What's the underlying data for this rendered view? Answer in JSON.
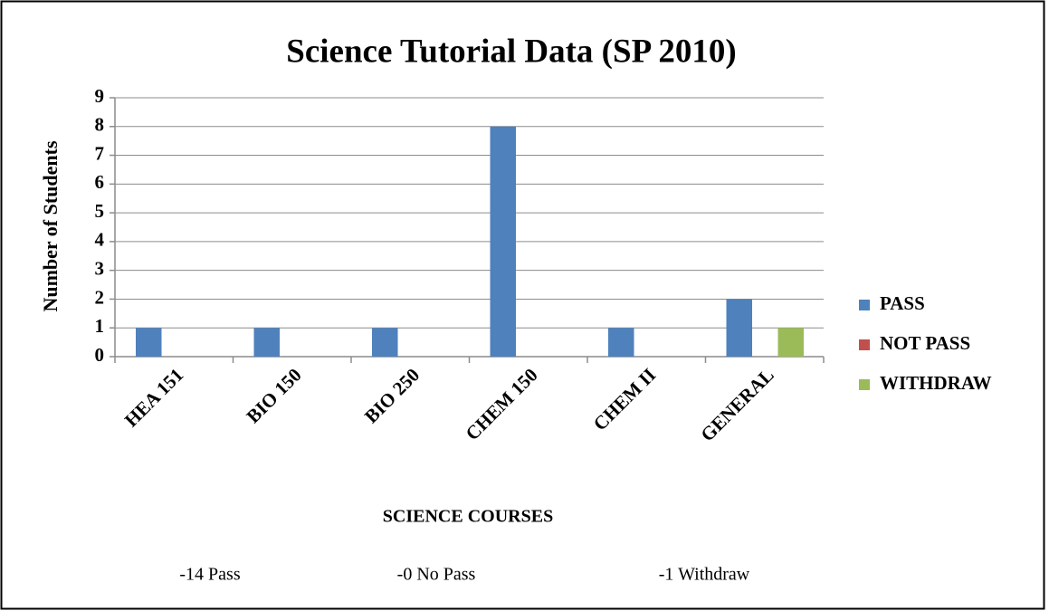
{
  "chart_data": {
    "type": "bar",
    "title": "Science Tutorial Data (SP 2010)",
    "x_label": "SCIENCE COURSES",
    "y_label": "Number of Students",
    "categories": [
      "HEA 151",
      "BIO 150",
      "BIO 250",
      "CHEM 150",
      "CHEM II",
      "GENERAL"
    ],
    "series": [
      {
        "name": "PASS",
        "color": "#4f81bd",
        "values": [
          1,
          1,
          1,
          8,
          1,
          2
        ]
      },
      {
        "name": "NOT PASS",
        "color": "#c0504d",
        "values": [
          0,
          0,
          0,
          0,
          0,
          0
        ]
      },
      {
        "name": "WITHDRAW",
        "color": "#9bbb59",
        "values": [
          0,
          0,
          0,
          0,
          0,
          1
        ]
      }
    ],
    "ylim": [
      0,
      9
    ],
    "yticks": [
      0,
      1,
      2,
      3,
      4,
      5,
      6,
      7,
      8,
      9
    ],
    "grid": true,
    "legend": "right",
    "annotations": [
      "-14 Pass",
      "-0 No Pass",
      "-1 Withdraw"
    ]
  }
}
